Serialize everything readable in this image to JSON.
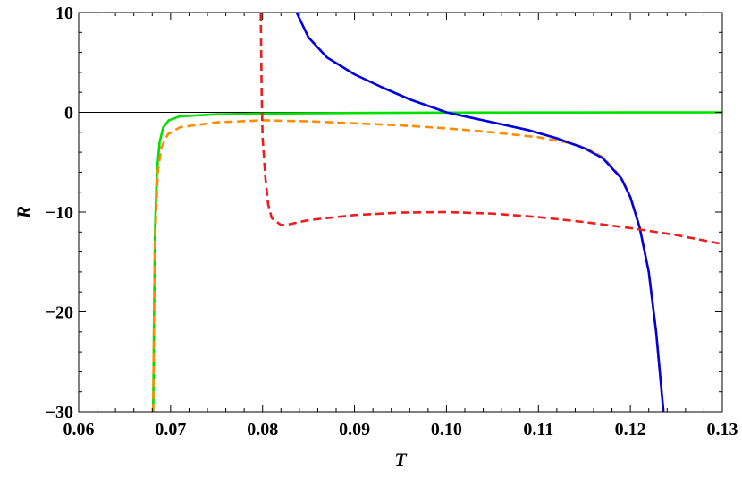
{
  "chart_data": {
    "type": "line",
    "title": "",
    "xlabel": "T",
    "ylabel": "R",
    "xlim": [
      0.06,
      0.13
    ],
    "ylim": [
      -30,
      10
    ],
    "grid": false,
    "legend": "none",
    "x_ticks": [
      "0.06",
      "0.07",
      "0.08",
      "0.09",
      "0.10",
      "0.11",
      "0.12",
      "0.13"
    ],
    "x_tick_values": [
      0.06,
      0.07,
      0.08,
      0.09,
      0.1,
      0.11,
      0.12,
      0.13
    ],
    "y_ticks": [
      "10",
      "0",
      "−10",
      "−20",
      "−30"
    ],
    "y_tick_values": [
      10,
      0,
      -10,
      -20,
      -30
    ],
    "zero_line": true,
    "series": [
      {
        "color": "#00e000",
        "dash": "solid",
        "points": [
          [
            0.0681,
            -30
          ],
          [
            0.0682,
            -20
          ],
          [
            0.0683,
            -12
          ],
          [
            0.0685,
            -6
          ],
          [
            0.0688,
            -3
          ],
          [
            0.0692,
            -1.5
          ],
          [
            0.0698,
            -0.8
          ],
          [
            0.071,
            -0.4
          ],
          [
            0.075,
            -0.2
          ],
          [
            0.08,
            -0.12
          ],
          [
            0.09,
            -0.06
          ],
          [
            0.1,
            -0.03
          ],
          [
            0.11,
            -0.02
          ],
          [
            0.12,
            -0.01
          ],
          [
            0.13,
            0
          ]
        ]
      },
      {
        "color": "#ff8c00",
        "dash": "dashed",
        "points": [
          [
            0.0681,
            -30
          ],
          [
            0.0682,
            -20
          ],
          [
            0.0683,
            -13
          ],
          [
            0.0686,
            -6
          ],
          [
            0.069,
            -3.5
          ],
          [
            0.0697,
            -2.2
          ],
          [
            0.071,
            -1.5
          ],
          [
            0.075,
            -1.0
          ],
          [
            0.08,
            -0.8
          ],
          [
            0.085,
            -0.9
          ],
          [
            0.09,
            -1.1
          ],
          [
            0.095,
            -1.3
          ],
          [
            0.1,
            -1.6
          ],
          [
            0.105,
            -2.0
          ],
          [
            0.11,
            -2.5
          ],
          [
            0.113,
            -3.0
          ],
          [
            0.115,
            -3.5
          ],
          [
            0.117,
            -4.5
          ],
          [
            0.119,
            -6.5
          ],
          [
            0.12,
            -8.5
          ],
          [
            0.121,
            -11.5
          ],
          [
            0.122,
            -16
          ],
          [
            0.1228,
            -22
          ],
          [
            0.1233,
            -27
          ],
          [
            0.1236,
            -30
          ]
        ]
      },
      {
        "color": "#0000e0",
        "dash": "solid",
        "points": [
          [
            0.0837,
            10
          ],
          [
            0.085,
            7.5
          ],
          [
            0.087,
            5.5
          ],
          [
            0.09,
            3.8
          ],
          [
            0.093,
            2.5
          ],
          [
            0.096,
            1.3
          ],
          [
            0.1,
            0
          ],
          [
            0.103,
            -0.6
          ],
          [
            0.106,
            -1.2
          ],
          [
            0.109,
            -1.8
          ],
          [
            0.112,
            -2.6
          ],
          [
            0.115,
            -3.6
          ],
          [
            0.117,
            -4.6
          ],
          [
            0.119,
            -6.6
          ],
          [
            0.12,
            -8.5
          ],
          [
            0.121,
            -11.5
          ],
          [
            0.122,
            -16
          ],
          [
            0.1228,
            -22
          ],
          [
            0.1233,
            -27
          ],
          [
            0.1236,
            -30
          ]
        ]
      },
      {
        "color": "#ee1c1c",
        "dash": "dashed",
        "points": [
          [
            0.0798,
            10
          ],
          [
            0.07985,
            6
          ],
          [
            0.0799,
            2
          ],
          [
            0.08,
            -2.5
          ],
          [
            0.0803,
            -6.5
          ],
          [
            0.0806,
            -9.2
          ],
          [
            0.081,
            -10.6
          ],
          [
            0.082,
            -11.3
          ],
          [
            0.083,
            -11.2
          ],
          [
            0.085,
            -10.8
          ],
          [
            0.09,
            -10.3
          ],
          [
            0.095,
            -10.05
          ],
          [
            0.1,
            -10.0
          ],
          [
            0.105,
            -10.15
          ],
          [
            0.11,
            -10.5
          ],
          [
            0.115,
            -11.0
          ],
          [
            0.12,
            -11.6
          ],
          [
            0.125,
            -12.3
          ],
          [
            0.13,
            -13.2
          ]
        ]
      }
    ]
  }
}
